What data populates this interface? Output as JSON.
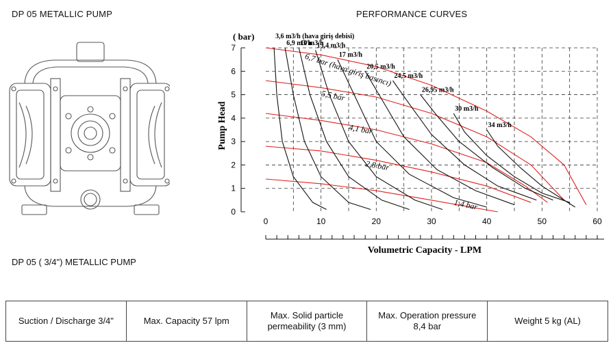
{
  "header": {
    "left_title": "DP 05 METALLIC PUMP",
    "right_title": "PERFORMANCE CURVES",
    "subtitle": "DP 05 ( 3/4\") METALLIC PUMP"
  },
  "specs": [
    {
      "line1": "Suction / Discharge 3/4\"",
      "line2": ""
    },
    {
      "line1": "Max. Capacity 57 lpm",
      "line2": ""
    },
    {
      "line1": "Max. Solid particle",
      "line2": "permeability (3 mm)"
    },
    {
      "line1": "Max. Operation pressure",
      "line2": "8,4 bar"
    },
    {
      "line1": "Weight 5 kg (AL)",
      "line2": ""
    }
  ],
  "chart_data": {
    "type": "line",
    "title": "PERFORMANCE CURVES",
    "xlabel": "Volumetric Capacity - LPM",
    "ylabel": "Pump Head",
    "y_unit": "( bar)",
    "xlim": [
      0,
      60
    ],
    "ylim": [
      0,
      7
    ],
    "x_ticks": [
      "0",
      "10",
      "20",
      "30",
      "40",
      "50",
      "60"
    ],
    "y_ticks": [
      "0",
      "1",
      "2",
      "3",
      "4",
      "5",
      "6",
      "7"
    ],
    "grid": true,
    "air_pressure_series": [
      {
        "name": "6,7 bar (hava giriş basıncı)",
        "points": [
          [
            0,
            7.0
          ],
          [
            10,
            6.7
          ],
          [
            20,
            6.2
          ],
          [
            30,
            5.4
          ],
          [
            40,
            4.3
          ],
          [
            48,
            3.2
          ],
          [
            54,
            2.0
          ],
          [
            58,
            0.3
          ]
        ]
      },
      {
        "name": "5,5 bar",
        "points": [
          [
            0,
            5.6
          ],
          [
            10,
            5.3
          ],
          [
            20,
            4.9
          ],
          [
            30,
            4.2
          ],
          [
            40,
            3.2
          ],
          [
            48,
            2.0
          ],
          [
            54,
            0.5
          ]
        ]
      },
      {
        "name": "4,1 bar",
        "points": [
          [
            0,
            4.2
          ],
          [
            10,
            3.9
          ],
          [
            20,
            3.5
          ],
          [
            30,
            2.9
          ],
          [
            40,
            2.1
          ],
          [
            47,
            1.1
          ],
          [
            51,
            0.4
          ]
        ]
      },
      {
        "name": "2,8 bar",
        "points": [
          [
            0,
            2.8
          ],
          [
            10,
            2.6
          ],
          [
            20,
            2.2
          ],
          [
            30,
            1.7
          ],
          [
            40,
            1.1
          ],
          [
            48,
            0.4
          ]
        ]
      },
      {
        "name": "1,4 bar",
        "points": [
          [
            0,
            1.4
          ],
          [
            10,
            1.2
          ],
          [
            20,
            0.9
          ],
          [
            30,
            0.5
          ],
          [
            37,
            0.2
          ],
          [
            42,
            0.0
          ]
        ]
      }
    ],
    "air_consumption_series": [
      {
        "name": "3,6 m3/h (hava giriş debisi)",
        "points": [
          [
            1.5,
            7.0
          ],
          [
            2.0,
            5.0
          ],
          [
            3.0,
            3.0
          ],
          [
            5.0,
            1.5
          ],
          [
            8.5,
            0.4
          ],
          [
            11,
            0.1
          ]
        ]
      },
      {
        "name": "6,9 m3/h",
        "points": [
          [
            3.5,
            7.0
          ],
          [
            5.0,
            5.0
          ],
          [
            7.0,
            3.0
          ],
          [
            10,
            1.5
          ],
          [
            15,
            0.4
          ],
          [
            19,
            0.1
          ]
        ]
      },
      {
        "name": "10 m3/h",
        "points": [
          [
            6.0,
            7.0
          ],
          [
            8.0,
            5.0
          ],
          [
            11,
            3.0
          ],
          [
            15,
            1.5
          ],
          [
            21,
            0.5
          ],
          [
            26,
            0.1
          ]
        ]
      },
      {
        "name": "13,4 m3/h",
        "points": [
          [
            9.0,
            6.9
          ],
          [
            11.5,
            5.0
          ],
          [
            15,
            3.0
          ],
          [
            20,
            1.5
          ],
          [
            27,
            0.5
          ],
          [
            32,
            0.1
          ]
        ]
      },
      {
        "name": "17 m3/h",
        "points": [
          [
            13,
            6.5
          ],
          [
            16,
            5.0
          ],
          [
            20,
            3.0
          ],
          [
            26,
            1.6
          ],
          [
            34,
            0.6
          ],
          [
            40,
            0.2
          ]
        ]
      },
      {
        "name": "20,5 m3/h",
        "points": [
          [
            18,
            6.0
          ],
          [
            21,
            4.8
          ],
          [
            25,
            3.2
          ],
          [
            31,
            1.8
          ],
          [
            38,
            0.9
          ],
          [
            45,
            0.3
          ]
        ]
      },
      {
        "name": "24,5 m3/h",
        "points": [
          [
            23,
            5.6
          ],
          [
            26,
            4.6
          ],
          [
            30,
            3.3
          ],
          [
            36,
            2.0
          ],
          [
            42,
            1.1
          ],
          [
            49,
            0.5
          ]
        ]
      },
      {
        "name": "26,95 m3/h",
        "points": [
          [
            28,
            5.0
          ],
          [
            31,
            4.1
          ],
          [
            35,
            3.0
          ],
          [
            41,
            1.9
          ],
          [
            47,
            1.0
          ],
          [
            52,
            0.5
          ]
        ]
      },
      {
        "name": "30 m3/h",
        "points": [
          [
            34,
            4.2
          ],
          [
            36,
            3.4
          ],
          [
            40,
            2.4
          ],
          [
            45,
            1.5
          ],
          [
            50,
            0.8
          ],
          [
            55,
            0.4
          ]
        ]
      },
      {
        "name": "34 m3/h",
        "points": [
          [
            40,
            3.5
          ],
          [
            42,
            2.8
          ],
          [
            46,
            1.9
          ],
          [
            50,
            1.1
          ],
          [
            54,
            0.5
          ],
          [
            56,
            0.2
          ]
        ]
      }
    ]
  }
}
